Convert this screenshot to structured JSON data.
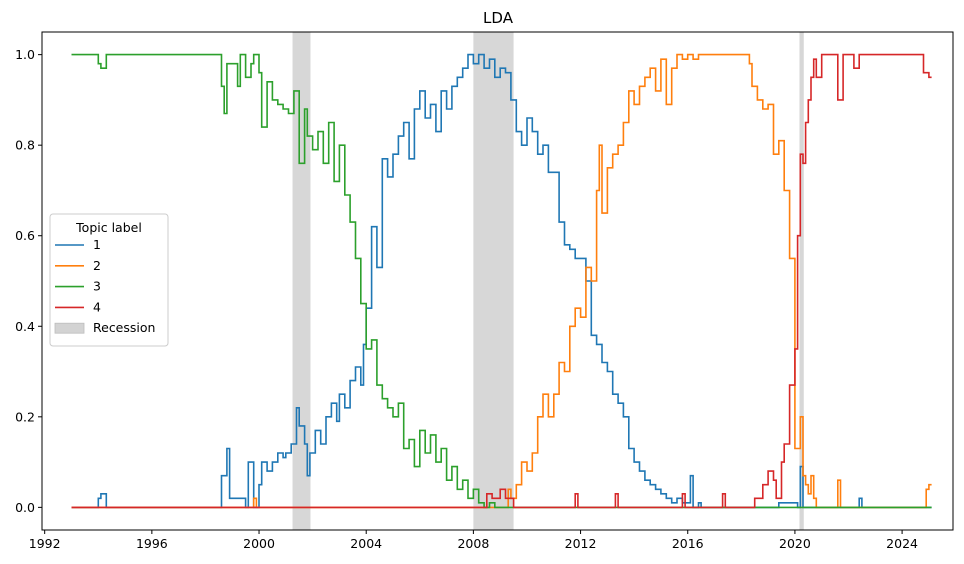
{
  "chart_data": {
    "type": "line",
    "title": "LDA",
    "xlabel": "",
    "ylabel": "",
    "xlim": [
      1991.9,
      2025.9
    ],
    "ylim": [
      -0.05,
      1.05
    ],
    "xticks": [
      1992,
      1996,
      2000,
      2004,
      2008,
      2012,
      2016,
      2020,
      2024
    ],
    "xtick_labels": [
      "1992",
      "1996",
      "2000",
      "2004",
      "2008",
      "2012",
      "2016",
      "2020",
      "2024"
    ],
    "yticks": [
      0.0,
      0.2,
      0.4,
      0.6,
      0.8,
      1.0
    ],
    "ytick_labels": [
      "0.0",
      "0.2",
      "0.4",
      "0.6",
      "0.8",
      "1.0"
    ],
    "grid": false,
    "legend": {
      "title": "Topic label",
      "placement": "center-left"
    },
    "step": "post",
    "colors": {
      "1": "#1f77b4",
      "2": "#ff7f0e",
      "3": "#2ca02c",
      "4": "#d62728",
      "recession": "#d3d3d3"
    },
    "recessions": [
      {
        "name": "Recession",
        "start": 2001.25,
        "end": 2001.92
      },
      {
        "start": 2008.0,
        "end": 2009.5
      },
      {
        "start": 2020.17,
        "end": 2020.33
      }
    ],
    "series": [
      {
        "name": "1",
        "x": [
          1993.0,
          1994.0,
          1994.1,
          1994.3,
          1998.5,
          1998.6,
          1998.8,
          1998.9,
          1999.5,
          1999.6,
          1999.8,
          2000.0,
          2000.1,
          2000.3,
          2000.5,
          2000.7,
          2000.9,
          2001.0,
          2001.2,
          2001.4,
          2001.5,
          2001.7,
          2001.8,
          2001.9,
          2002.1,
          2002.3,
          2002.5,
          2002.7,
          2002.9,
          2003.0,
          2003.2,
          2003.4,
          2003.6,
          2003.8,
          2003.9,
          2004.0,
          2004.2,
          2004.4,
          2004.6,
          2004.8,
          2005.0,
          2005.2,
          2005.4,
          2005.6,
          2005.8,
          2006.0,
          2006.2,
          2006.4,
          2006.6,
          2006.8,
          2007.0,
          2007.2,
          2007.4,
          2007.6,
          2007.8,
          2008.0,
          2008.2,
          2008.4,
          2008.6,
          2008.8,
          2009.0,
          2009.2,
          2009.4,
          2009.6,
          2009.8,
          2010.0,
          2010.2,
          2010.4,
          2010.6,
          2010.8,
          2011.0,
          2011.2,
          2011.4,
          2011.6,
          2011.8,
          2012.0,
          2012.2,
          2012.4,
          2012.6,
          2012.8,
          2013.0,
          2013.2,
          2013.4,
          2013.6,
          2013.8,
          2014.0,
          2014.2,
          2014.4,
          2014.6,
          2014.8,
          2015.0,
          2015.2,
          2015.4,
          2015.6,
          2015.8,
          2016.0,
          2016.1,
          2016.2,
          2016.4,
          2016.5,
          2019.3,
          2019.4,
          2020.1,
          2020.2,
          2020.3,
          2022.3,
          2022.4,
          2022.5,
          2025.1
        ],
        "values": [
          0.0,
          0.02,
          0.03,
          0.0,
          0.0,
          0.07,
          0.13,
          0.02,
          0.0,
          0.1,
          0.0,
          0.05,
          0.1,
          0.08,
          0.1,
          0.12,
          0.11,
          0.12,
          0.14,
          0.22,
          0.18,
          0.14,
          0.07,
          0.12,
          0.17,
          0.14,
          0.2,
          0.23,
          0.19,
          0.25,
          0.22,
          0.28,
          0.31,
          0.27,
          0.36,
          0.44,
          0.62,
          0.53,
          0.77,
          0.73,
          0.78,
          0.82,
          0.85,
          0.77,
          0.88,
          0.92,
          0.86,
          0.89,
          0.83,
          0.92,
          0.88,
          0.93,
          0.95,
          0.97,
          1.0,
          0.98,
          1.0,
          0.97,
          0.99,
          0.95,
          0.97,
          0.96,
          0.9,
          0.83,
          0.8,
          0.86,
          0.83,
          0.78,
          0.8,
          0.74,
          0.74,
          0.63,
          0.58,
          0.57,
          0.55,
          0.55,
          0.5,
          0.38,
          0.36,
          0.32,
          0.3,
          0.25,
          0.23,
          0.2,
          0.13,
          0.1,
          0.08,
          0.06,
          0.05,
          0.04,
          0.03,
          0.02,
          0.01,
          0.02,
          0.01,
          0.01,
          0.07,
          0.0,
          0.01,
          0.0,
          0.0,
          0.01,
          0.0,
          0.09,
          0.0,
          0.0,
          0.02,
          0.0,
          0.0
        ]
      },
      {
        "name": "2",
        "x": [
          1993.0,
          1999.8,
          1999.9,
          2000.0,
          2009.3,
          2009.4,
          2009.6,
          2009.8,
          2010.0,
          2010.2,
          2010.4,
          2010.6,
          2010.8,
          2011.0,
          2011.2,
          2011.4,
          2011.6,
          2011.8,
          2012.0,
          2012.2,
          2012.4,
          2012.6,
          2012.7,
          2012.8,
          2013.0,
          2013.2,
          2013.4,
          2013.6,
          2013.8,
          2014.0,
          2014.2,
          2014.4,
          2014.6,
          2014.8,
          2015.0,
          2015.2,
          2015.4,
          2015.6,
          2015.8,
          2016.0,
          2016.2,
          2016.4,
          2016.6,
          2018.3,
          2018.4,
          2018.6,
          2018.8,
          2019.0,
          2019.2,
          2019.4,
          2019.6,
          2019.8,
          2020.0,
          2020.2,
          2020.3,
          2020.4,
          2020.5,
          2020.6,
          2020.7,
          2020.8,
          2021.0,
          2021.6,
          2021.7,
          2024.9,
          2025.0,
          2025.1
        ],
        "values": [
          0.0,
          0.02,
          0.0,
          0.0,
          0.04,
          0.02,
          0.05,
          0.1,
          0.08,
          0.12,
          0.2,
          0.25,
          0.2,
          0.25,
          0.32,
          0.3,
          0.4,
          0.44,
          0.42,
          0.53,
          0.5,
          0.7,
          0.8,
          0.65,
          0.75,
          0.78,
          0.8,
          0.85,
          0.92,
          0.89,
          0.93,
          0.95,
          0.97,
          0.92,
          0.99,
          0.89,
          0.97,
          1.0,
          0.99,
          1.0,
          0.99,
          1.0,
          1.0,
          0.98,
          0.93,
          0.9,
          0.88,
          0.89,
          0.78,
          0.81,
          0.7,
          0.55,
          0.13,
          0.2,
          0.07,
          0.05,
          0.03,
          0.07,
          0.02,
          0.0,
          0.0,
          0.06,
          0.0,
          0.04,
          0.05,
          0.05
        ]
      },
      {
        "name": "3",
        "x": [
          1993.0,
          1994.0,
          1994.1,
          1994.3,
          1998.5,
          1998.6,
          1998.7,
          1998.8,
          1999.2,
          1999.3,
          1999.5,
          1999.7,
          1999.8,
          2000.0,
          2000.1,
          2000.3,
          2000.5,
          2000.7,
          2000.9,
          2001.1,
          2001.3,
          2001.5,
          2001.7,
          2001.8,
          2002.0,
          2002.2,
          2002.4,
          2002.6,
          2002.8,
          2003.0,
          2003.2,
          2003.4,
          2003.6,
          2003.8,
          2004.0,
          2004.2,
          2004.4,
          2004.6,
          2004.8,
          2005.0,
          2005.2,
          2005.4,
          2005.6,
          2005.8,
          2006.0,
          2006.2,
          2006.4,
          2006.6,
          2006.8,
          2007.0,
          2007.2,
          2007.4,
          2007.6,
          2007.8,
          2008.0,
          2008.2,
          2008.4,
          2008.6,
          2008.8,
          2009.0,
          2025.1
        ],
        "values": [
          1.0,
          0.98,
          0.97,
          1.0,
          1.0,
          0.93,
          0.87,
          0.98,
          0.93,
          1.0,
          0.95,
          0.98,
          1.0,
          0.96,
          0.84,
          0.94,
          0.9,
          0.89,
          0.88,
          0.87,
          0.92,
          0.76,
          0.88,
          0.82,
          0.79,
          0.83,
          0.76,
          0.85,
          0.72,
          0.8,
          0.69,
          0.63,
          0.55,
          0.45,
          0.35,
          0.37,
          0.27,
          0.24,
          0.22,
          0.2,
          0.23,
          0.13,
          0.15,
          0.09,
          0.17,
          0.12,
          0.16,
          0.1,
          0.13,
          0.06,
          0.09,
          0.04,
          0.06,
          0.02,
          0.04,
          0.01,
          0.0,
          0.01,
          0.0,
          0.0,
          0.0
        ]
      },
      {
        "name": "4",
        "x": [
          1993.0,
          2003.0,
          2003.3,
          2004.2,
          2004.8,
          2006.0,
          2007.5,
          2008.0,
          2008.5,
          2008.7,
          2009.0,
          2009.2,
          2009.5,
          2011.8,
          2011.9,
          2013.3,
          2013.4,
          2015.8,
          2015.9,
          2017.3,
          2017.4,
          2018.4,
          2018.5,
          2018.8,
          2019.0,
          2019.2,
          2019.3,
          2019.5,
          2019.6,
          2019.8,
          2020.0,
          2020.1,
          2020.2,
          2020.3,
          2020.4,
          2020.5,
          2020.6,
          2020.7,
          2020.8,
          2021.0,
          2021.2,
          2021.6,
          2021.8,
          2021.9,
          2022.2,
          2022.4,
          2022.6,
          2024.8,
          2025.0,
          2025.1
        ],
        "values": [
          0.0,
          0.0,
          0.0,
          0.0,
          0.0,
          0.0,
          0.0,
          0.0,
          0.03,
          0.02,
          0.04,
          0.02,
          0.0,
          0.03,
          0.0,
          0.03,
          0.0,
          0.03,
          0.0,
          0.03,
          0.0,
          0.0,
          0.02,
          0.05,
          0.08,
          0.06,
          0.02,
          0.1,
          0.14,
          0.27,
          0.35,
          0.6,
          0.78,
          0.76,
          0.85,
          0.9,
          0.95,
          0.99,
          0.95,
          1.0,
          1.0,
          0.9,
          1.0,
          1.0,
          0.97,
          1.0,
          1.0,
          0.96,
          0.95,
          0.95
        ]
      }
    ]
  }
}
